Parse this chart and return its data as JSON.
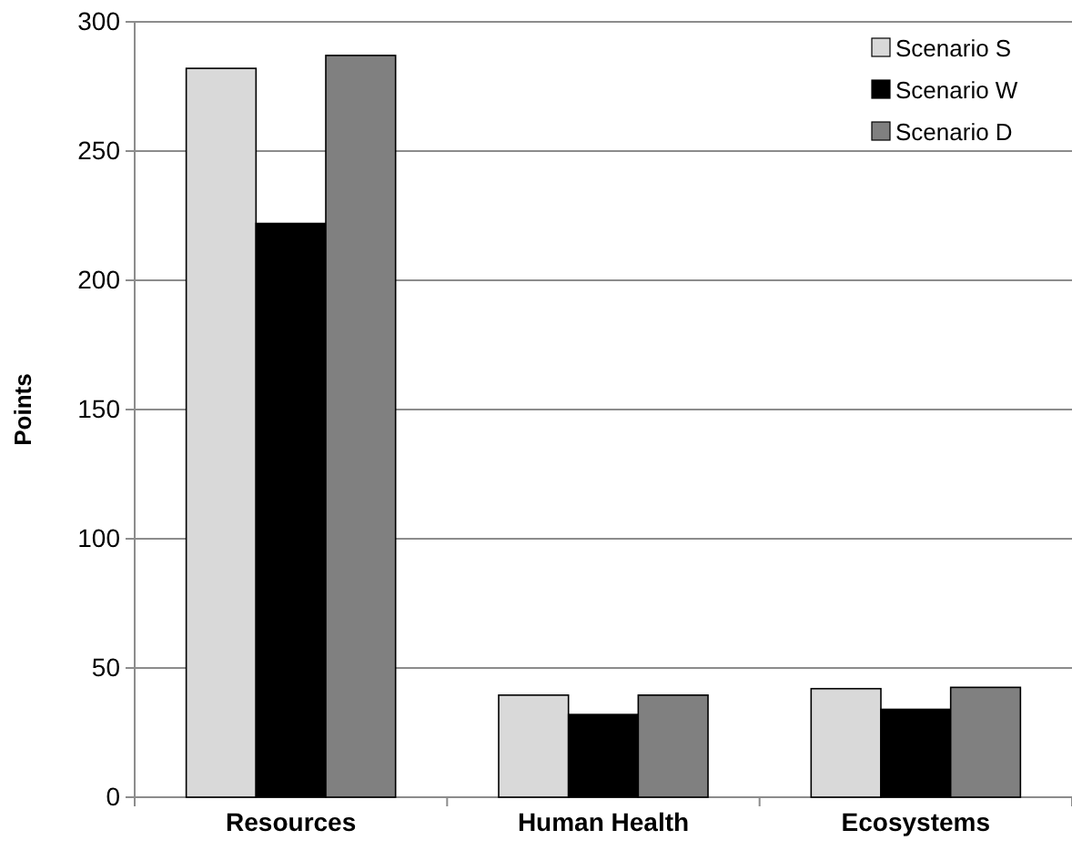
{
  "chart_data": {
    "type": "bar",
    "ylabel": "Points",
    "categories": [
      "Resources",
      "Human Health",
      "Ecosystems"
    ],
    "series": [
      {
        "name": "Scenario S",
        "color": "#d9d9d9",
        "values": [
          282,
          39.5,
          42
        ]
      },
      {
        "name": "Scenario W",
        "color": "#000000",
        "values": [
          222,
          32,
          34
        ]
      },
      {
        "name": "Scenario D",
        "color": "#808080",
        "values": [
          287,
          39.5,
          42.5
        ]
      }
    ],
    "ylim": [
      0,
      300
    ],
    "yticks": [
      0,
      50,
      100,
      150,
      200,
      250,
      300
    ],
    "grid": "y",
    "legend": "top right"
  }
}
